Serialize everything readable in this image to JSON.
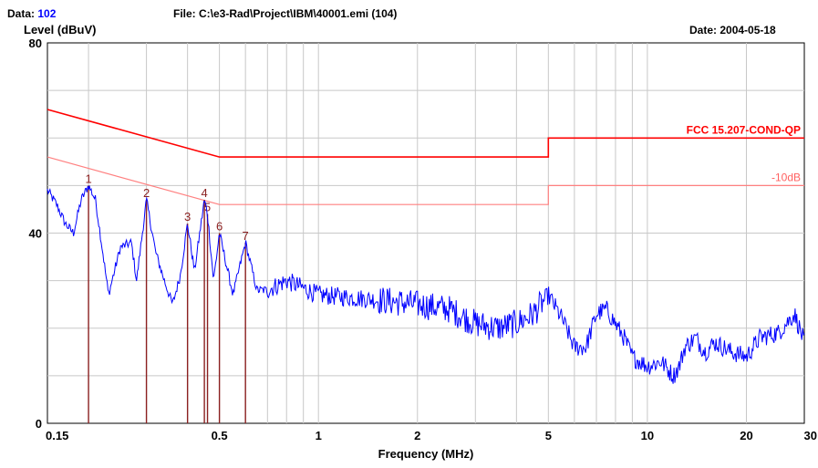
{
  "header": {
    "data_label": "Data:",
    "data_value": "102",
    "file_text": "File: C:\\e3-Rad\\Project\\IBM\\40001.emi  (104)",
    "date_text": "Date: 2004-05-18"
  },
  "chart_data": {
    "type": "line",
    "xlabel": "Frequency (MHz)",
    "ylabel": "Level (dBuV)",
    "x_scale": "log",
    "xlim": [
      0.15,
      30
    ],
    "ylim": [
      0,
      80
    ],
    "grid": true,
    "y_ticks": [
      "0",
      "40",
      "80"
    ],
    "x_ticks": [
      {
        "value": 0.15,
        "label": "0.15"
      },
      {
        "value": 0.5,
        "label": "0.5"
      },
      {
        "value": 1,
        "label": "1"
      },
      {
        "value": 2,
        "label": "2"
      },
      {
        "value": 5,
        "label": "5"
      },
      {
        "value": 10,
        "label": "10"
      },
      {
        "value": 20,
        "label": "20"
      },
      {
        "value": 30,
        "label": "30"
      }
    ],
    "limit_lines": [
      {
        "name": "FCC 15.207-COND-QP",
        "color": "#ff0000",
        "points": [
          [
            0.15,
            66
          ],
          [
            0.5,
            56
          ],
          [
            5,
            56
          ],
          [
            5,
            60
          ],
          [
            30,
            60
          ]
        ]
      },
      {
        "name": "-10dB",
        "color": "#ff8080",
        "points": [
          [
            0.15,
            56
          ],
          [
            0.5,
            46
          ],
          [
            5,
            46
          ],
          [
            5,
            50
          ],
          [
            30,
            50
          ]
        ]
      }
    ],
    "markers": [
      {
        "label": "1",
        "x": 0.2,
        "y": 50
      },
      {
        "label": "2",
        "x": 0.3,
        "y": 47
      },
      {
        "label": "3",
        "x": 0.4,
        "y": 42
      },
      {
        "label": "4",
        "x": 0.45,
        "y": 47
      },
      {
        "label": "5",
        "x": 0.46,
        "y": 44
      },
      {
        "label": "6",
        "x": 0.5,
        "y": 40
      },
      {
        "label": "7",
        "x": 0.6,
        "y": 38
      }
    ],
    "series": [
      {
        "color": "#0000ff",
        "anchors": [
          [
            0.15,
            49
          ],
          [
            0.16,
            46
          ],
          [
            0.17,
            42
          ],
          [
            0.18,
            40
          ],
          [
            0.19,
            47
          ],
          [
            0.2,
            50
          ],
          [
            0.21,
            47
          ],
          [
            0.22,
            37
          ],
          [
            0.23,
            27
          ],
          [
            0.25,
            37
          ],
          [
            0.27,
            38
          ],
          [
            0.28,
            30
          ],
          [
            0.3,
            47
          ],
          [
            0.32,
            36
          ],
          [
            0.34,
            30
          ],
          [
            0.36,
            25
          ],
          [
            0.38,
            31
          ],
          [
            0.4,
            42
          ],
          [
            0.42,
            32
          ],
          [
            0.45,
            47
          ],
          [
            0.46,
            44
          ],
          [
            0.48,
            30
          ],
          [
            0.5,
            40
          ],
          [
            0.55,
            27
          ],
          [
            0.6,
            38
          ],
          [
            0.65,
            28
          ],
          [
            0.7,
            28
          ],
          [
            0.8,
            30
          ],
          [
            1,
            27
          ],
          [
            1.5,
            26
          ],
          [
            2,
            25
          ],
          [
            2.5,
            24
          ],
          [
            3,
            21
          ],
          [
            3.5,
            20
          ],
          [
            4,
            21
          ],
          [
            4.5,
            23
          ],
          [
            5,
            27
          ],
          [
            5.5,
            22
          ],
          [
            6,
            16
          ],
          [
            6.5,
            16
          ],
          [
            7,
            23
          ],
          [
            7.5,
            24
          ],
          [
            8.5,
            18
          ],
          [
            9,
            14
          ],
          [
            10,
            12
          ],
          [
            11,
            13
          ],
          [
            12,
            10
          ],
          [
            12.5,
            12
          ],
          [
            13,
            16
          ],
          [
            14,
            18
          ],
          [
            15,
            15
          ],
          [
            16,
            17
          ],
          [
            17,
            16
          ],
          [
            18,
            15
          ],
          [
            20,
            14
          ],
          [
            22,
            18
          ],
          [
            25,
            19
          ],
          [
            28,
            23
          ],
          [
            30,
            17
          ]
        ],
        "jitter_db": 4
      }
    ]
  }
}
